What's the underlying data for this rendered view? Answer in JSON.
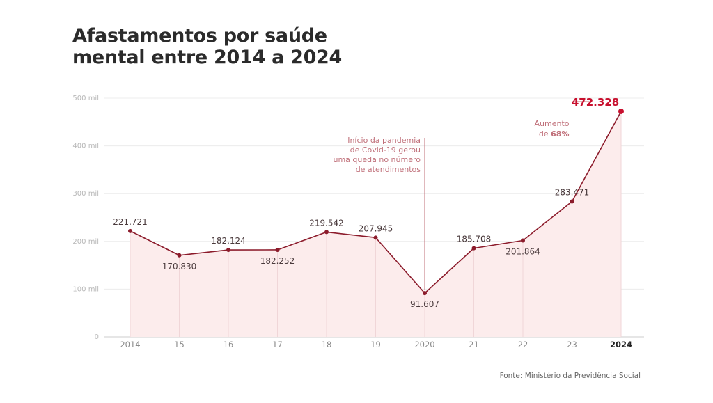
{
  "title_line1": "Afastamentos por saúde",
  "title_line2": "mental entre 2014 a 2024",
  "source": "Fonte: Ministério da Previdência Social",
  "colors": {
    "line": "#8c1b2b",
    "area": "#fcecec",
    "highlight": "#c8102e",
    "annotation": "#c0707a",
    "grid": "#ececec",
    "axis": "#999999"
  },
  "chart_data": {
    "type": "area",
    "x": [
      "2014",
      "15",
      "16",
      "17",
      "18",
      "19",
      "2020",
      "21",
      "22",
      "23",
      "2024"
    ],
    "values": [
      221721,
      170830,
      182124,
      182252,
      219542,
      207945,
      91607,
      185708,
      201864,
      283471,
      472328
    ],
    "value_labels": [
      "221.721",
      "170.830",
      "182.124",
      "182.252",
      "219.542",
      "207.945",
      "91.607",
      "185.708",
      "201.864",
      "283.471",
      "472.328"
    ],
    "y_ticks": [
      0,
      100000,
      200000,
      300000,
      400000,
      500000
    ],
    "y_tick_labels": [
      "0",
      "100 mil",
      "200 mil",
      "300 mil",
      "400 mil",
      "500 mil"
    ],
    "ylim": [
      0,
      500000
    ],
    "grid": true,
    "highlight_last": true,
    "annotations": [
      {
        "at": "2020",
        "lines": [
          "Início da pandemia",
          "de Covid-19 gerou",
          "uma queda no número",
          "de atendimentos"
        ]
      },
      {
        "at": "23",
        "line1": "Aumento",
        "line2_prefix": "de ",
        "line2_value": "68%"
      }
    ]
  }
}
